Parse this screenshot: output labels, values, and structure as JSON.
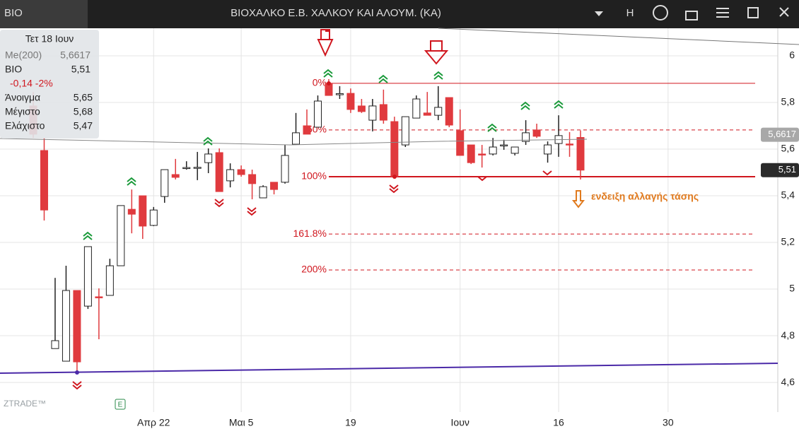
{
  "header": {
    "symbol": "BIO",
    "title": "ΒΙΟΧΑΛΚΟ Ε.Β. ΧΑΛΚΟΥ ΚΑΙ ΑΛΟΥΜ. (ΚΑ)",
    "mode": "H"
  },
  "info_panel": {
    "date": "Τετ 18 Ιουν",
    "ma_label": "Me(200)",
    "ma_value": "5,6617",
    "symbol": "BIO",
    "last": "5,51",
    "change": "-0,14 -2%",
    "open_label": "Άνοιγμα",
    "open": "5,65",
    "high_label": "Μέγιστο",
    "high": "5,68",
    "low_label": "Ελάχιστο",
    "low": "5,47"
  },
  "footer": {
    "brand": "ZTRADE™",
    "badge": "E"
  },
  "chart_data": {
    "type": "candlestick",
    "up_color": "#ffffff",
    "down_color": "#e03a3e",
    "grid": true,
    "categories": [
      null,
      null,
      null,
      null,
      null,
      null,
      null,
      null,
      null,
      null,
      null,
      "Απρ 22",
      null,
      null,
      null,
      null,
      null,
      null,
      null,
      "Μαι 5",
      null,
      null,
      null,
      null,
      null,
      null,
      null,
      null,
      null,
      "19",
      null,
      null,
      null,
      null,
      null,
      null,
      null,
      null,
      null,
      "Ιουν",
      null,
      null,
      null,
      null,
      null,
      null,
      null,
      null,
      "16",
      null,
      null,
      null,
      null,
      null,
      null,
      null,
      null,
      null,
      "30"
    ],
    "open": [
      5.785,
      5.594,
      4.745,
      4.691,
      4.994,
      4.927,
      4.967,
      4.973,
      5.1,
      5.342,
      5.4,
      5.273,
      5.397,
      5.491,
      5.518,
      5.52,
      5.542,
      5.585,
      5.464,
      5.512,
      5.491,
      5.391,
      5.458,
      5.458,
      5.621,
      5.7,
      5.694,
      5.882,
      5.833,
      5.839,
      5.785,
      5.724,
      5.791,
      5.718,
      5.618,
      5.733,
      5.755,
      5.745,
      5.821,
      5.679,
      5.618,
      5.579,
      5.579,
      5.615,
      5.582,
      5.633,
      5.682,
      5.579,
      5.624,
      5.622,
      5.65,
      null,
      null,
      null,
      null,
      null,
      null,
      null,
      null
    ],
    "high": [
      5.845,
      5.648,
      5.048,
      5.1,
      4.994,
      5.182,
      5.003,
      5.13,
      5.358,
      5.427,
      5.4,
      5.352,
      5.512,
      5.558,
      5.548,
      5.588,
      5.603,
      5.603,
      5.539,
      5.53,
      5.512,
      5.445,
      5.458,
      5.618,
      5.755,
      5.77,
      5.83,
      5.9,
      5.87,
      5.86,
      5.815,
      5.815,
      5.855,
      5.739,
      5.739,
      5.83,
      5.845,
      5.87,
      5.821,
      5.77,
      5.618,
      5.618,
      5.648,
      5.64,
      5.609,
      5.724,
      5.709,
      5.633,
      5.745,
      5.673,
      5.68,
      null,
      null,
      null,
      null,
      null,
      null,
      null,
      null
    ],
    "low": [
      5.648,
      5.294,
      4.745,
      4.691,
      4.642,
      4.915,
      4.785,
      4.973,
      5.1,
      5.239,
      5.215,
      5.27,
      5.37,
      5.47,
      5.512,
      5.467,
      5.497,
      5.418,
      5.436,
      5.482,
      5.385,
      5.391,
      5.406,
      5.452,
      5.618,
      5.664,
      5.694,
      5.83,
      5.815,
      5.755,
      5.755,
      5.676,
      5.709,
      5.482,
      5.609,
      5.733,
      5.745,
      5.724,
      5.694,
      5.573,
      5.536,
      5.521,
      5.573,
      5.597,
      5.573,
      5.618,
      5.648,
      5.542,
      5.567,
      5.567,
      5.47,
      null,
      null,
      null,
      null,
      null,
      null,
      null,
      null
    ],
    "close": [
      5.664,
      5.339,
      4.779,
      4.994,
      4.688,
      5.182,
      4.964,
      5.1,
      5.358,
      5.321,
      5.27,
      5.339,
      5.512,
      5.479,
      5.521,
      5.522,
      5.579,
      5.418,
      5.512,
      5.491,
      5.452,
      5.439,
      5.427,
      5.573,
      5.67,
      5.664,
      5.806,
      5.83,
      5.838,
      5.77,
      5.761,
      5.785,
      5.724,
      5.482,
      5.739,
      5.815,
      5.745,
      5.779,
      5.703,
      5.573,
      5.542,
      5.576,
      5.609,
      5.618,
      5.609,
      5.67,
      5.655,
      5.618,
      5.658,
      5.621,
      5.51,
      null,
      null,
      null,
      null,
      null,
      null,
      null,
      null
    ],
    "ylim": [
      4.473,
      6.118
    ],
    "yticks": [
      {
        "value": 4.6,
        "label": "4,6"
      },
      {
        "value": 4.8,
        "label": "4,8"
      },
      5,
      {
        "value": 5.2,
        "label": "5,2"
      },
      {
        "value": 5.4,
        "label": "5,4"
      },
      {
        "value": 5.6,
        "label": "5,6"
      },
      {
        "value": 5.8,
        "label": "5,8"
      },
      6
    ],
    "price_tags": [
      {
        "value": 5.6617,
        "label": "5,6617"
      },
      {
        "value": 5.51,
        "label": "5,51"
      }
    ],
    "fib_levels": [
      {
        "label": "0%",
        "value": 5.882,
        "color": "#d0161e"
      },
      {
        "label": "50%",
        "value": 5.682,
        "color": "#d0161e"
      },
      {
        "label": "100%",
        "value": 5.482,
        "color": "#d0161e"
      },
      {
        "label": "161.8%",
        "value": 5.236,
        "color": "#d0161e"
      },
      {
        "label": "200%",
        "value": 5.082,
        "color": "#d0161e"
      }
    ],
    "annotation": "ενδειξη αλλαγής τάσης"
  }
}
